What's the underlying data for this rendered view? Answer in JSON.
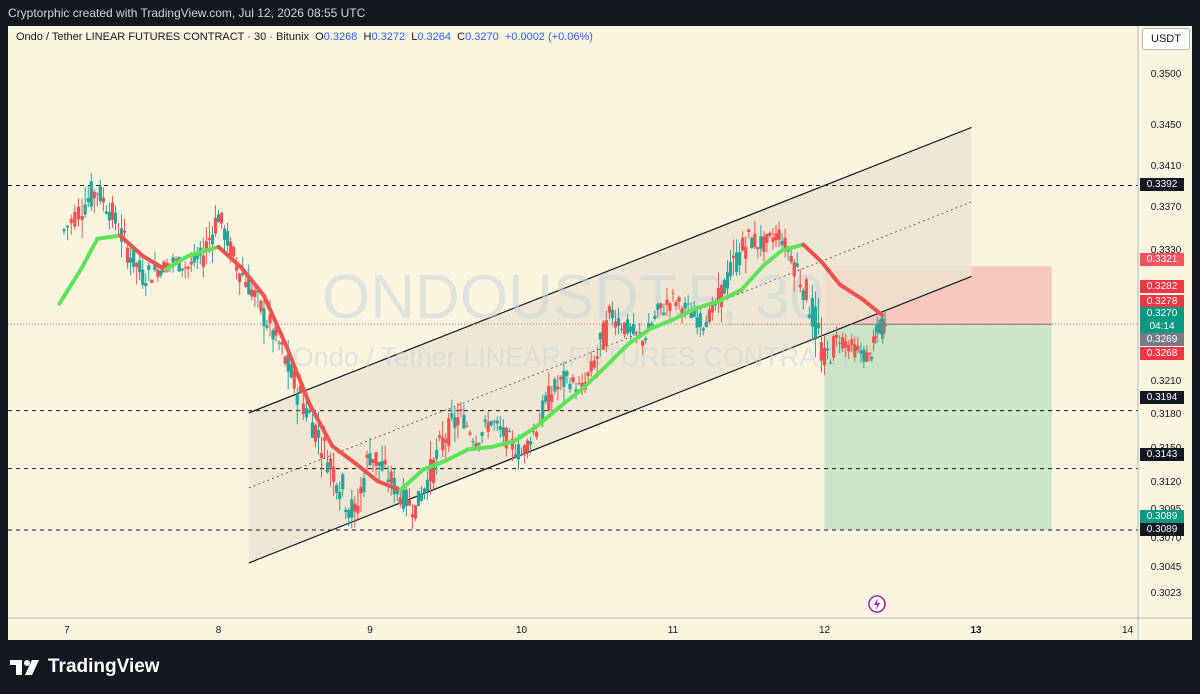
{
  "header": {
    "credit": "Cryptorphic created with TradingView.com, Jul 12, 2026 08:55 UTC"
  },
  "legend": {
    "symbol": "Ondo / Tether LINEAR FUTURES CONTRACT · 30 · Bitunix",
    "o_label": "O",
    "o": "0.3268",
    "h_label": "H",
    "h": "0.3272",
    "l_label": "L",
    "l": "0.3264",
    "c_label": "C",
    "c": "0.3270",
    "change": "+0.0002 (+0.06%)"
  },
  "currency": "USDT",
  "watermark": {
    "line1": "ONDOUSDT.P, 30",
    "line2": "Ondo / Tether LINEAR FUTURES CONTRACT"
  },
  "footer": {
    "brand": "TradingView"
  },
  "colors": {
    "background": "#fbf5df",
    "up": "#26a69a",
    "down": "#ef5350",
    "ma_up": "#5ee35a",
    "ma_down": "#ef5350",
    "target_zone": "#c7e3c4",
    "stop_zone": "#f6c3b8",
    "channel_fill": "#ece3cf"
  },
  "chart_data": {
    "type": "candlestick",
    "timeframe": "30",
    "x_ticks": [
      "7",
      "8",
      "9",
      "10",
      "11",
      "12",
      "13",
      "14"
    ],
    "y_ticks": [
      "0.3500",
      "0.3450",
      "0.3410",
      "0.3370",
      "0.3330",
      "0.3210",
      "0.3180",
      "0.3150",
      "0.3120",
      "0.3095",
      "0.3070",
      "0.3045",
      "0.3023"
    ],
    "horizontal_levels": [
      0.3392,
      0.3194,
      0.3143,
      0.3089
    ],
    "price_tags": [
      {
        "value": "0.3392",
        "bg": "#131722",
        "role": "level"
      },
      {
        "value": "0.3321",
        "bg": "#f7525f",
        "role": "stop"
      },
      {
        "value": "0.3282",
        "bg": "#f23645",
        "role": "high"
      },
      {
        "value": "0.3278",
        "bg": "#f23645",
        "role": "ma"
      },
      {
        "value": "0.3270",
        "bg": "#089981",
        "role": "last"
      },
      {
        "value": "04:14",
        "bg": "#089981",
        "role": "countdown"
      },
      {
        "value": "0.3269",
        "bg": "#787b86",
        "role": "bid"
      },
      {
        "value": "0.3268",
        "bg": "#f23645",
        "role": "open"
      },
      {
        "value": "0.3194",
        "bg": "#131722",
        "role": "level"
      },
      {
        "value": "0.3143",
        "bg": "#131722",
        "role": "level"
      },
      {
        "value": "0.3089",
        "bg": "#089981",
        "role": "target"
      },
      {
        "value": "0.3089",
        "bg": "#131722",
        "role": "level"
      }
    ],
    "channel": {
      "lower_start": [
        8.2,
        0.306
      ],
      "lower_end": [
        12.97,
        0.3312
      ],
      "upper_start": [
        8.2,
        0.3192
      ],
      "upper_end": [
        12.97,
        0.3443
      ]
    },
    "position": {
      "type": "short",
      "entry": 0.327,
      "stop": 0.3321,
      "target": 0.3089,
      "start_day": 12.0,
      "end_day": 13.5
    },
    "candles_summary": [
      {
        "t": 6.98,
        "o": 0.3344,
        "h": 0.3365,
        "l": 0.332,
        "c": 0.3352
      },
      {
        "t": 7.1,
        "o": 0.3352,
        "h": 0.3382,
        "l": 0.334,
        "c": 0.3374
      },
      {
        "t": 7.2,
        "o": 0.3374,
        "h": 0.3418,
        "l": 0.336,
        "c": 0.3388
      },
      {
        "t": 7.3,
        "o": 0.3388,
        "h": 0.3398,
        "l": 0.336,
        "c": 0.3366
      },
      {
        "t": 7.4,
        "o": 0.3366,
        "h": 0.3372,
        "l": 0.333,
        "c": 0.3336
      },
      {
        "t": 7.5,
        "o": 0.3336,
        "h": 0.3348,
        "l": 0.33,
        "c": 0.3312
      },
      {
        "t": 7.6,
        "o": 0.3312,
        "h": 0.3325,
        "l": 0.329,
        "c": 0.3318
      },
      {
        "t": 7.7,
        "o": 0.3318,
        "h": 0.3332,
        "l": 0.33,
        "c": 0.3325
      },
      {
        "t": 7.8,
        "o": 0.3325,
        "h": 0.3345,
        "l": 0.331,
        "c": 0.332
      },
      {
        "t": 7.9,
        "o": 0.332,
        "h": 0.334,
        "l": 0.33,
        "c": 0.3332
      },
      {
        "t": 8.0,
        "o": 0.3332,
        "h": 0.3378,
        "l": 0.3318,
        "c": 0.3366
      },
      {
        "t": 8.1,
        "o": 0.3366,
        "h": 0.3372,
        "l": 0.332,
        "c": 0.3328
      },
      {
        "t": 8.2,
        "o": 0.3328,
        "h": 0.3338,
        "l": 0.33,
        "c": 0.3305
      },
      {
        "t": 8.3,
        "o": 0.3305,
        "h": 0.3316,
        "l": 0.327,
        "c": 0.3278
      },
      {
        "t": 8.4,
        "o": 0.3278,
        "h": 0.329,
        "l": 0.324,
        "c": 0.3252
      },
      {
        "t": 8.5,
        "o": 0.3252,
        "h": 0.3262,
        "l": 0.321,
        "c": 0.3218
      },
      {
        "t": 8.6,
        "o": 0.3218,
        "h": 0.323,
        "l": 0.3178,
        "c": 0.319
      },
      {
        "t": 8.7,
        "o": 0.319,
        "h": 0.3205,
        "l": 0.315,
        "c": 0.316
      },
      {
        "t": 8.8,
        "o": 0.316,
        "h": 0.3172,
        "l": 0.312,
        "c": 0.313
      },
      {
        "t": 8.9,
        "o": 0.313,
        "h": 0.3178,
        "l": 0.3088,
        "c": 0.31
      },
      {
        "t": 9.0,
        "o": 0.31,
        "h": 0.317,
        "l": 0.309,
        "c": 0.3158
      },
      {
        "t": 9.1,
        "o": 0.3158,
        "h": 0.3175,
        "l": 0.313,
        "c": 0.314
      },
      {
        "t": 9.2,
        "o": 0.314,
        "h": 0.315,
        "l": 0.311,
        "c": 0.312
      },
      {
        "t": 9.3,
        "o": 0.312,
        "h": 0.3135,
        "l": 0.3092,
        "c": 0.3108
      },
      {
        "t": 9.4,
        "o": 0.3108,
        "h": 0.3145,
        "l": 0.3095,
        "c": 0.3138
      },
      {
        "t": 9.5,
        "o": 0.3138,
        "h": 0.318,
        "l": 0.3128,
        "c": 0.3172
      },
      {
        "t": 9.6,
        "o": 0.3172,
        "h": 0.3202,
        "l": 0.316,
        "c": 0.319
      },
      {
        "t": 9.7,
        "o": 0.319,
        "h": 0.32,
        "l": 0.3158,
        "c": 0.3168
      },
      {
        "t": 9.8,
        "o": 0.3168,
        "h": 0.3195,
        "l": 0.315,
        "c": 0.3185
      },
      {
        "t": 9.9,
        "o": 0.3185,
        "h": 0.3198,
        "l": 0.316,
        "c": 0.317
      },
      {
        "t": 10.0,
        "o": 0.317,
        "h": 0.3182,
        "l": 0.3145,
        "c": 0.3155
      },
      {
        "t": 10.1,
        "o": 0.3155,
        "h": 0.3188,
        "l": 0.3148,
        "c": 0.318
      },
      {
        "t": 10.2,
        "o": 0.318,
        "h": 0.3218,
        "l": 0.317,
        "c": 0.321
      },
      {
        "t": 10.3,
        "o": 0.321,
        "h": 0.3232,
        "l": 0.3195,
        "c": 0.3222
      },
      {
        "t": 10.4,
        "o": 0.3222,
        "h": 0.3238,
        "l": 0.32,
        "c": 0.3212
      },
      {
        "t": 10.5,
        "o": 0.3212,
        "h": 0.325,
        "l": 0.3205,
        "c": 0.3242
      },
      {
        "t": 10.6,
        "o": 0.3242,
        "h": 0.329,
        "l": 0.3232,
        "c": 0.328
      },
      {
        "t": 10.7,
        "o": 0.328,
        "h": 0.3296,
        "l": 0.3258,
        "c": 0.3266
      },
      {
        "t": 10.8,
        "o": 0.3266,
        "h": 0.3282,
        "l": 0.3245,
        "c": 0.3255
      },
      {
        "t": 10.9,
        "o": 0.3255,
        "h": 0.3288,
        "l": 0.3248,
        "c": 0.328
      },
      {
        "t": 11.0,
        "o": 0.328,
        "h": 0.33,
        "l": 0.3262,
        "c": 0.3292
      },
      {
        "t": 11.1,
        "o": 0.3292,
        "h": 0.3305,
        "l": 0.3272,
        "c": 0.3282
      },
      {
        "t": 11.2,
        "o": 0.3282,
        "h": 0.3295,
        "l": 0.326,
        "c": 0.327
      },
      {
        "t": 11.3,
        "o": 0.327,
        "h": 0.3298,
        "l": 0.3262,
        "c": 0.329
      },
      {
        "t": 11.4,
        "o": 0.329,
        "h": 0.333,
        "l": 0.328,
        "c": 0.3322
      },
      {
        "t": 11.5,
        "o": 0.3322,
        "h": 0.3355,
        "l": 0.3312,
        "c": 0.3345
      },
      {
        "t": 11.6,
        "o": 0.3345,
        "h": 0.337,
        "l": 0.333,
        "c": 0.334
      },
      {
        "t": 11.7,
        "o": 0.334,
        "h": 0.336,
        "l": 0.3325,
        "c": 0.335
      },
      {
        "t": 11.8,
        "o": 0.335,
        "h": 0.3356,
        "l": 0.3318,
        "c": 0.3325
      },
      {
        "t": 11.9,
        "o": 0.3325,
        "h": 0.3332,
        "l": 0.328,
        "c": 0.329
      },
      {
        "t": 12.0,
        "o": 0.329,
        "h": 0.3296,
        "l": 0.3225,
        "c": 0.3238
      },
      {
        "t": 12.1,
        "o": 0.3238,
        "h": 0.3268,
        "l": 0.3228,
        "c": 0.3258
      },
      {
        "t": 12.2,
        "o": 0.3258,
        "h": 0.327,
        "l": 0.3235,
        "c": 0.3248
      },
      {
        "t": 12.3,
        "o": 0.3248,
        "h": 0.3262,
        "l": 0.3228,
        "c": 0.324
      },
      {
        "t": 12.36,
        "o": 0.324,
        "h": 0.3275,
        "l": 0.3232,
        "c": 0.3268
      },
      {
        "t": 12.4,
        "o": 0.3268,
        "h": 0.3282,
        "l": 0.3262,
        "c": 0.327
      }
    ],
    "moving_average": [
      [
        6.95,
        0.3288
      ],
      [
        7.1,
        0.332
      ],
      [
        7.2,
        0.3345
      ],
      [
        7.35,
        0.3348
      ],
      [
        7.5,
        0.333
      ],
      [
        7.65,
        0.3318
      ],
      [
        7.8,
        0.333
      ],
      [
        8.0,
        0.3338
      ],
      [
        8.15,
        0.332
      ],
      [
        8.3,
        0.3295
      ],
      [
        8.45,
        0.325
      ],
      [
        8.6,
        0.32
      ],
      [
        8.75,
        0.3163
      ],
      [
        8.9,
        0.3148
      ],
      [
        9.05,
        0.3132
      ],
      [
        9.2,
        0.3124
      ],
      [
        9.35,
        0.3142
      ],
      [
        9.5,
        0.315
      ],
      [
        9.65,
        0.316
      ],
      [
        9.8,
        0.3162
      ],
      [
        9.95,
        0.3167
      ],
      [
        10.1,
        0.318
      ],
      [
        10.25,
        0.3197
      ],
      [
        10.4,
        0.3213
      ],
      [
        10.55,
        0.3232
      ],
      [
        10.7,
        0.3252
      ],
      [
        10.85,
        0.3266
      ],
      [
        11.0,
        0.3274
      ],
      [
        11.15,
        0.3284
      ],
      [
        11.3,
        0.329
      ],
      [
        11.45,
        0.33
      ],
      [
        11.6,
        0.3322
      ],
      [
        11.72,
        0.3335
      ],
      [
        11.86,
        0.334
      ],
      [
        11.98,
        0.3325
      ],
      [
        12.1,
        0.3305
      ],
      [
        12.25,
        0.3292
      ],
      [
        12.38,
        0.3278
      ]
    ]
  }
}
